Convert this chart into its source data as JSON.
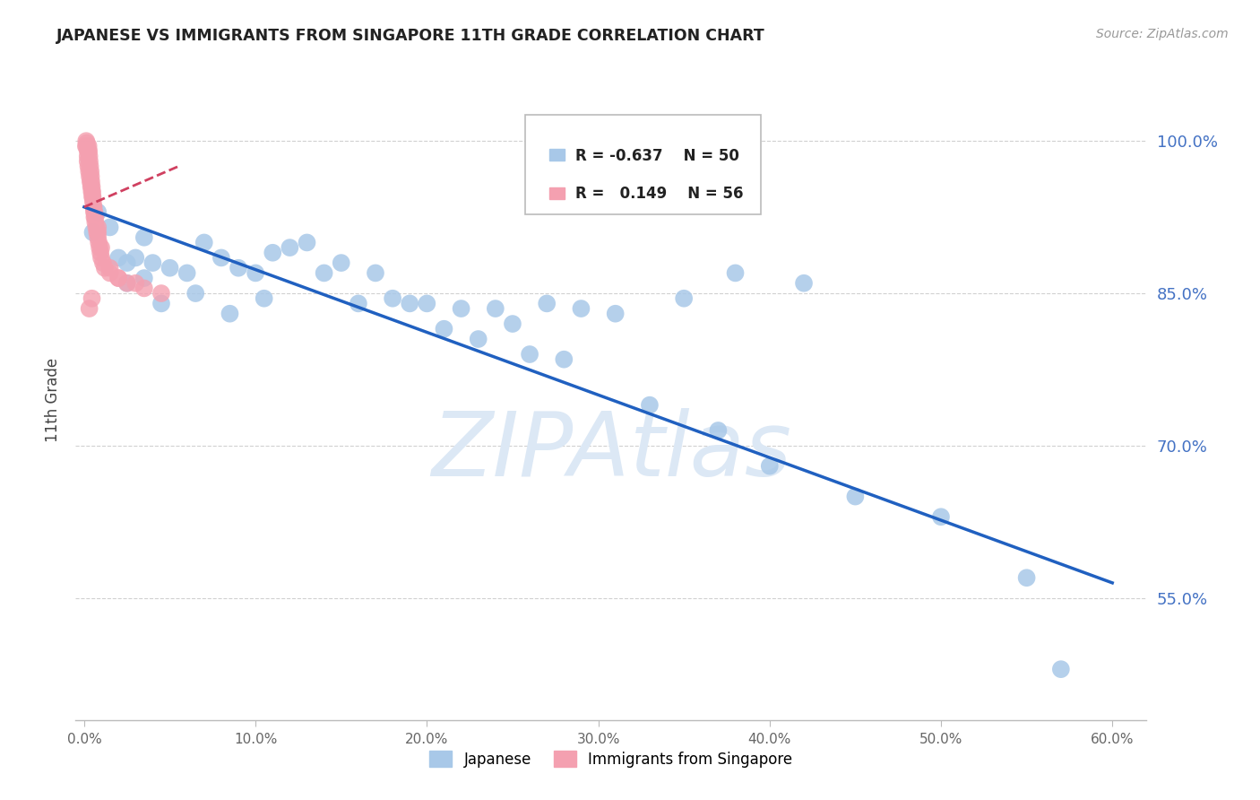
{
  "title": "JAPANESE VS IMMIGRANTS FROM SINGAPORE 11TH GRADE CORRELATION CHART",
  "source": "Source: ZipAtlas.com",
  "ylabel_label": "11th Grade",
  "legend_labels": [
    "Japanese",
    "Immigrants from Singapore"
  ],
  "blue_R": -0.637,
  "blue_N": 50,
  "pink_R": 0.149,
  "pink_N": 56,
  "blue_color": "#a8c8e8",
  "pink_color": "#f4a0b0",
  "blue_line_color": "#2060c0",
  "pink_line_color": "#d04060",
  "watermark": "ZIPAtlas",
  "watermark_color": "#dce8f5",
  "blue_scatter_x": [
    0.5,
    0.8,
    1.5,
    2.0,
    2.5,
    3.0,
    3.5,
    4.0,
    5.0,
    6.0,
    7.0,
    8.0,
    9.0,
    10.0,
    11.0,
    12.0,
    13.0,
    15.0,
    17.0,
    18.0,
    20.0,
    22.0,
    24.0,
    25.0,
    27.0,
    29.0,
    31.0,
    35.0,
    38.0,
    42.0,
    57.0,
    2.5,
    3.5,
    4.5,
    6.5,
    8.5,
    10.5,
    14.0,
    16.0,
    19.0,
    21.0,
    23.0,
    26.0,
    28.0,
    33.0,
    37.0,
    40.0,
    45.0,
    50.0,
    55.0
  ],
  "blue_scatter_y": [
    91.0,
    93.0,
    91.5,
    88.5,
    88.0,
    88.5,
    90.5,
    88.0,
    87.5,
    87.0,
    90.0,
    88.5,
    87.5,
    87.0,
    89.0,
    89.5,
    90.0,
    88.0,
    87.0,
    84.5,
    84.0,
    83.5,
    83.5,
    82.0,
    84.0,
    83.5,
    83.0,
    84.5,
    87.0,
    86.0,
    48.0,
    86.0,
    86.5,
    84.0,
    85.0,
    83.0,
    84.5,
    87.0,
    84.0,
    84.0,
    81.5,
    80.5,
    79.0,
    78.5,
    74.0,
    71.5,
    68.0,
    65.0,
    63.0,
    57.0
  ],
  "pink_scatter_x": [
    0.1,
    0.15,
    0.18,
    0.2,
    0.22,
    0.25,
    0.28,
    0.3,
    0.32,
    0.35,
    0.38,
    0.4,
    0.42,
    0.45,
    0.48,
    0.5,
    0.52,
    0.55,
    0.58,
    0.6,
    0.65,
    0.7,
    0.75,
    0.8,
    0.85,
    0.9,
    0.95,
    1.0,
    1.1,
    1.2,
    1.5,
    2.0,
    2.5,
    3.5,
    4.5,
    0.12,
    0.16,
    0.2,
    0.24,
    0.28,
    0.32,
    0.36,
    0.4,
    0.44,
    0.48,
    0.55,
    0.65,
    0.8,
    1.0,
    1.5,
    2.0,
    3.0,
    0.3,
    0.45,
    0.6,
    0.8
  ],
  "pink_scatter_y": [
    99.5,
    99.8,
    99.2,
    98.5,
    99.0,
    99.5,
    99.0,
    98.5,
    98.0,
    97.5,
    97.0,
    96.5,
    96.0,
    95.5,
    95.0,
    94.5,
    94.0,
    93.5,
    93.0,
    92.5,
    92.0,
    91.5,
    91.0,
    90.5,
    90.0,
    89.5,
    89.0,
    88.5,
    88.0,
    87.5,
    87.0,
    86.5,
    86.0,
    85.5,
    85.0,
    100.0,
    99.5,
    98.0,
    97.5,
    97.0,
    96.5,
    96.0,
    95.5,
    95.0,
    94.5,
    93.5,
    92.5,
    91.0,
    89.5,
    87.5,
    86.5,
    86.0,
    83.5,
    84.5,
    93.0,
    91.5
  ],
  "blue_trend_x": [
    0.0,
    60.0
  ],
  "blue_trend_y": [
    93.5,
    56.5
  ],
  "pink_trend_x": [
    0.0,
    5.5
  ],
  "pink_trend_y": [
    93.5,
    97.5
  ],
  "xlim": [
    -0.5,
    62.0
  ],
  "ylim": [
    43.0,
    106.0
  ],
  "ytick_vals": [
    55,
    70,
    85,
    100
  ],
  "xtick_vals": [
    0,
    10,
    20,
    30,
    40,
    50,
    60
  ],
  "figsize": [
    14.06,
    8.92
  ],
  "dpi": 100
}
